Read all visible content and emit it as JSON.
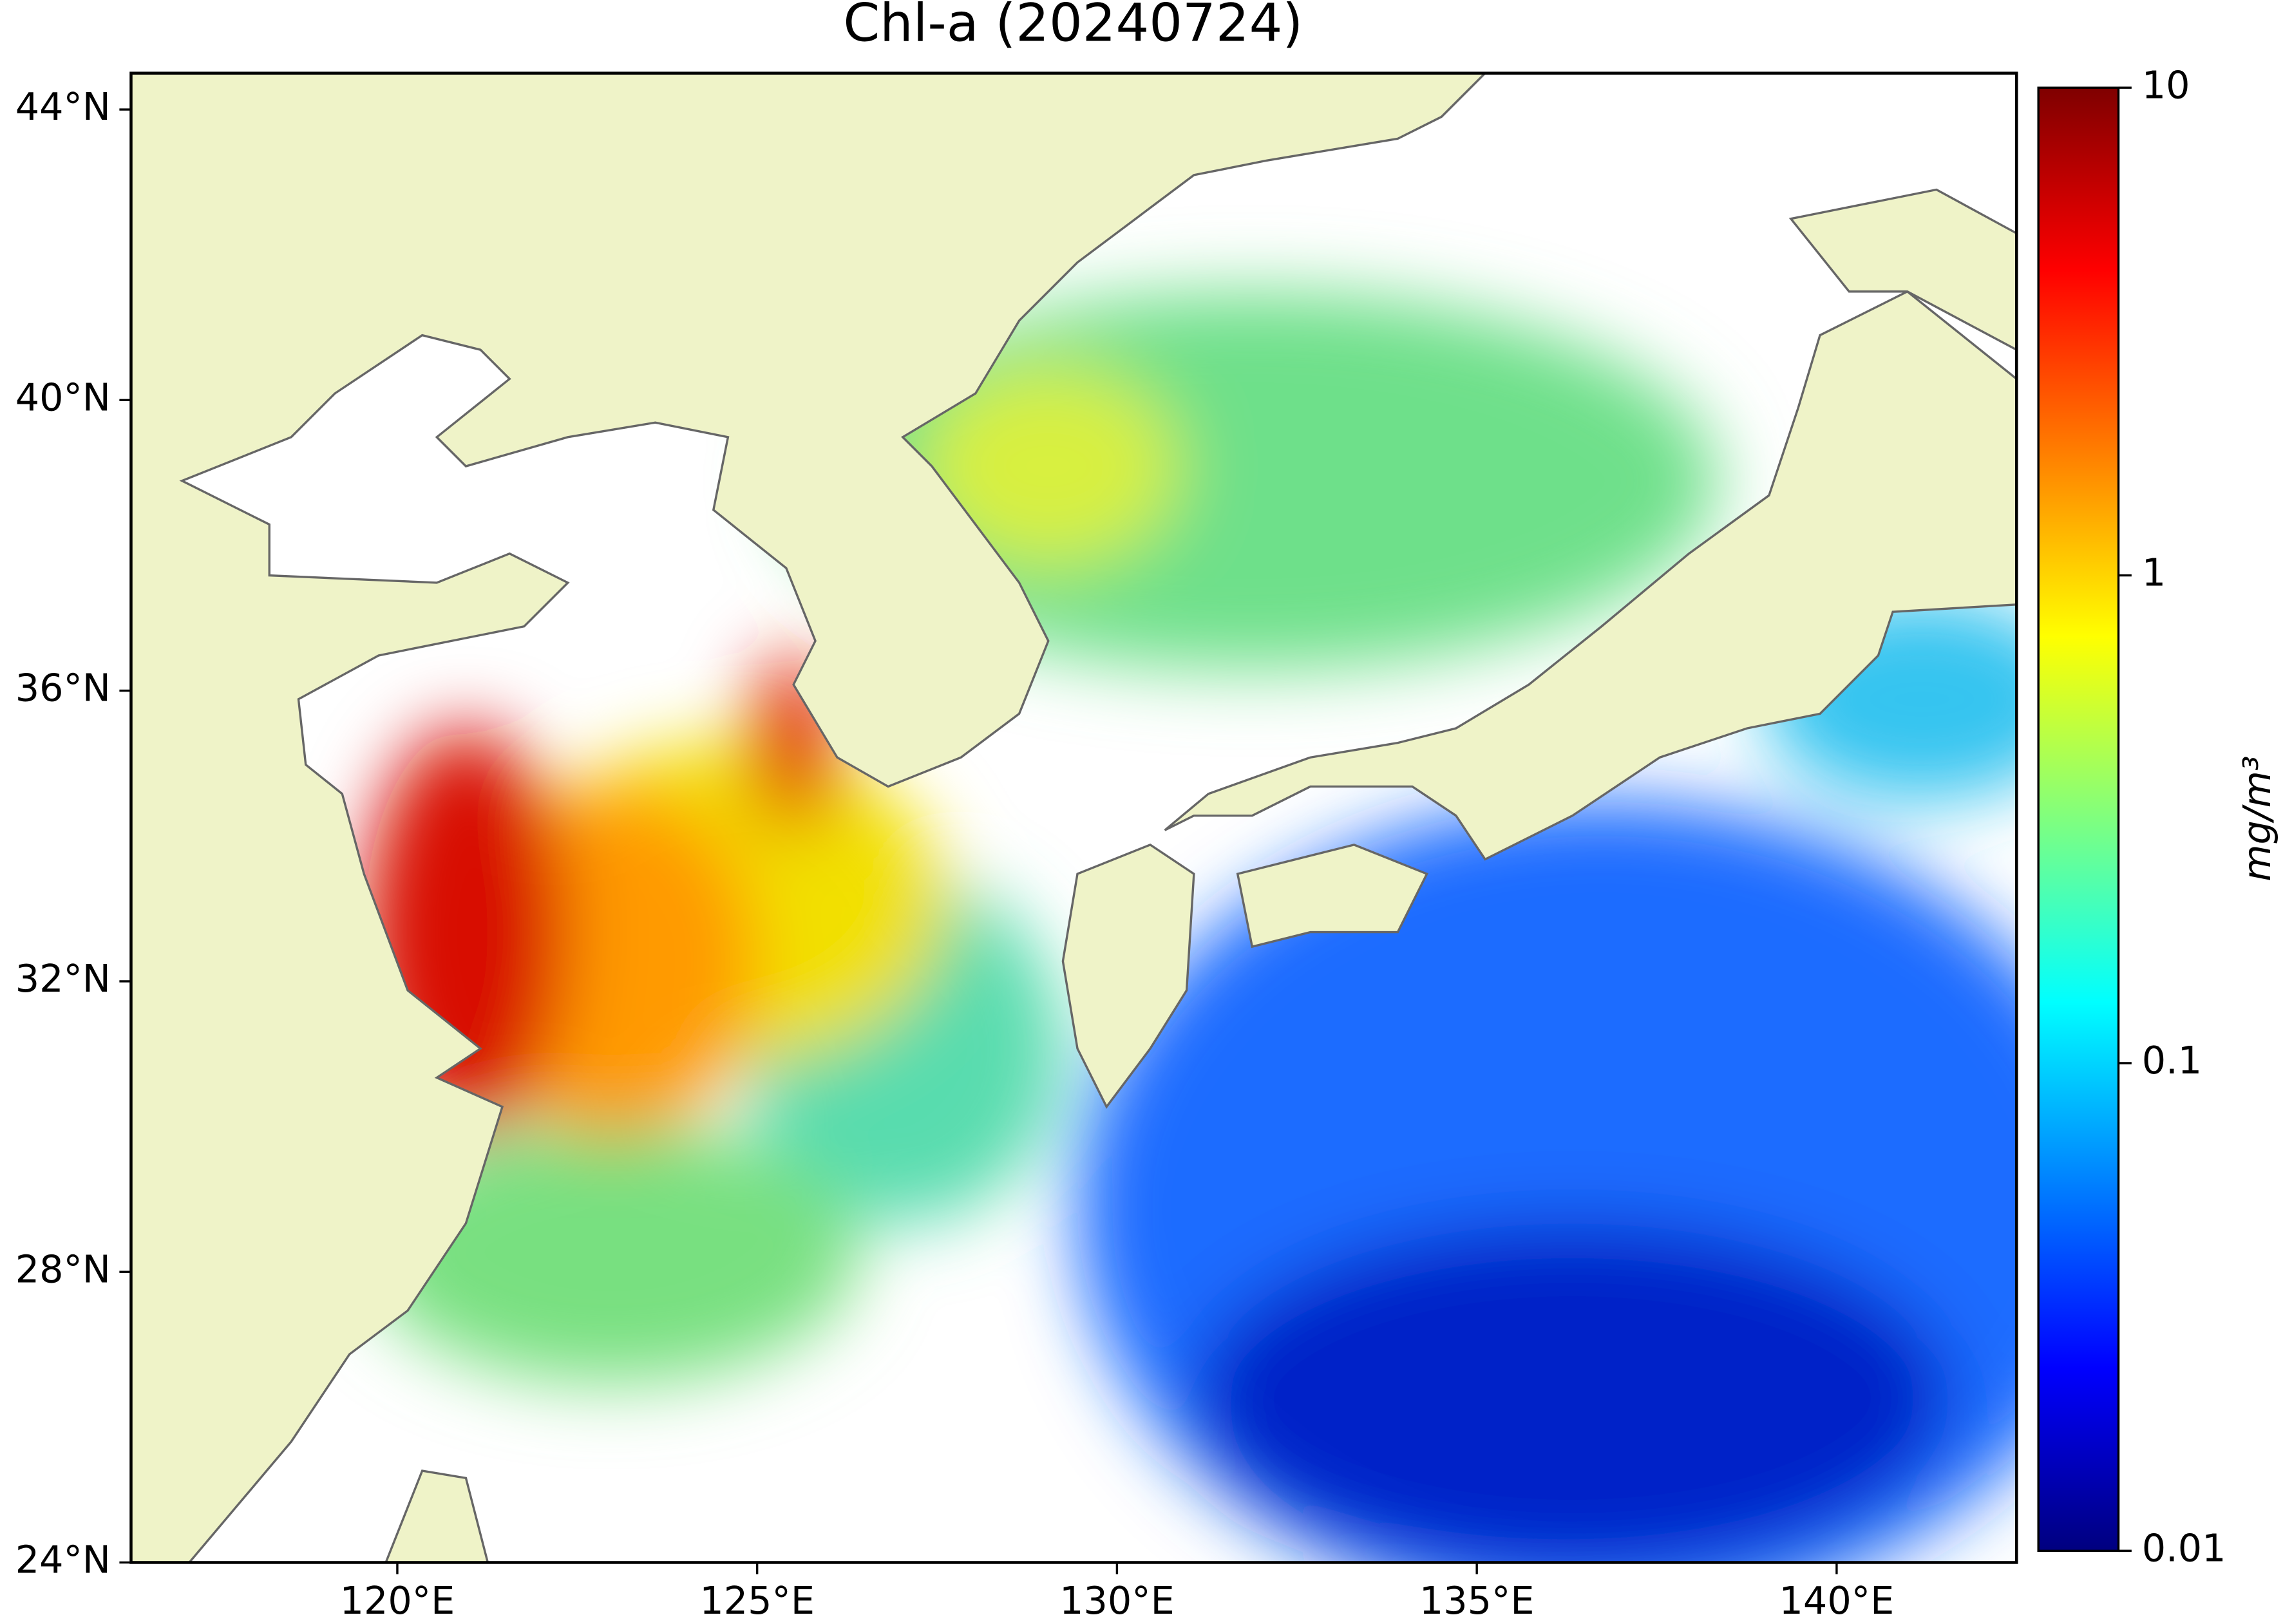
{
  "chart_data": {
    "type": "map",
    "title": "Chl-a (20240724)",
    "xlim": [
      116.3,
      142.5
    ],
    "xticks": [
      {
        "value": 120,
        "label": "120°E"
      },
      {
        "value": 125,
        "label": "125°E"
      },
      {
        "value": 130,
        "label": "130°E"
      },
      {
        "value": 135,
        "label": "135°E"
      },
      {
        "value": 140,
        "label": "140°E"
      }
    ],
    "ylim": [
      24,
      44.5
    ],
    "yticks": [
      {
        "value": 24,
        "label": "24°N"
      },
      {
        "value": 28,
        "label": "28°N"
      },
      {
        "value": 32,
        "label": "32°N"
      },
      {
        "value": 36,
        "label": "36°N"
      },
      {
        "value": 40,
        "label": "40°N"
      },
      {
        "value": 44,
        "label": "44°N"
      }
    ],
    "colorbar": {
      "label": "mg/m³",
      "scale": "log",
      "colormap": "jet",
      "lim": [
        0.01,
        10
      ],
      "ticks": [
        0.01,
        0.1,
        1,
        10
      ]
    }
  }
}
